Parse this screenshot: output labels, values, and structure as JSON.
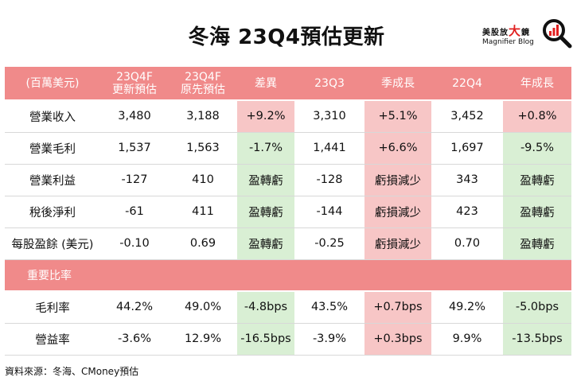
{
  "title": "冬海 23Q4預估更新",
  "brand": {
    "cn_prefix": "美股放",
    "cn_big": "大",
    "cn_suffix": "鏡",
    "en": "Magnifier Blog",
    "icon": "magnifier-chart-icon"
  },
  "table": {
    "headers": [
      [
        "(百萬美元)"
      ],
      [
        "23Q4F",
        "更新預估"
      ],
      [
        "23Q4F",
        "原先預估"
      ],
      [
        "差異"
      ],
      [
        "23Q3"
      ],
      [
        "季成長"
      ],
      [
        "22Q4"
      ],
      [
        "年成長"
      ]
    ],
    "rows": [
      {
        "label": "營業收入",
        "cells": [
          "3,480",
          "3,188",
          "+9.2%",
          "3,310",
          "+5.1%",
          "3,452",
          "+0.8%"
        ],
        "styles": [
          "",
          "",
          "red",
          "",
          "red",
          "",
          "red"
        ]
      },
      {
        "label": "營業毛利",
        "cells": [
          "1,537",
          "1,563",
          "-1.7%",
          "1,441",
          "+6.6%",
          "1,697",
          "-9.5%"
        ],
        "styles": [
          "",
          "",
          "green",
          "",
          "red",
          "",
          "green"
        ]
      },
      {
        "label": "營業利益",
        "cells": [
          "-127",
          "410",
          "盈轉虧",
          "-128",
          "虧損減少",
          "343",
          "盈轉虧"
        ],
        "styles": [
          "",
          "",
          "green",
          "",
          "red",
          "",
          "green"
        ]
      },
      {
        "label": "稅後淨利",
        "cells": [
          "-61",
          "411",
          "盈轉虧",
          "-144",
          "虧損減少",
          "423",
          "盈轉虧"
        ],
        "styles": [
          "",
          "",
          "green",
          "",
          "red",
          "",
          "green"
        ]
      },
      {
        "label": "每股盈餘 (美元)",
        "cells": [
          "-0.10",
          "0.69",
          "盈轉虧",
          "-0.25",
          "虧損減少",
          "0.70",
          "盈轉虧"
        ],
        "styles": [
          "",
          "",
          "green",
          "",
          "red",
          "",
          "green"
        ]
      }
    ],
    "section_label": "重要比率",
    "ratio_rows": [
      {
        "label": "毛利率",
        "cells": [
          "44.2%",
          "49.0%",
          "-4.8bps",
          "43.5%",
          "+0.7bps",
          "49.2%",
          "-5.0bps"
        ],
        "styles": [
          "",
          "",
          "green",
          "",
          "red",
          "",
          "green"
        ]
      },
      {
        "label": "營益率",
        "cells": [
          "-3.6%",
          "12.9%",
          "-16.5bps",
          "-3.9%",
          "+0.3bps",
          "9.9%",
          "-13.5bps"
        ],
        "styles": [
          "",
          "",
          "green",
          "",
          "red",
          "",
          "green"
        ]
      }
    ]
  },
  "colors": {
    "header": "#f08a8a",
    "positive_bg": "#f7c6c6",
    "positive_text": "#e02828",
    "negative_bg": "#d9efd4",
    "negative_text": "#1e9a3a"
  },
  "source": "資料來源：冬海、CMoney預估"
}
